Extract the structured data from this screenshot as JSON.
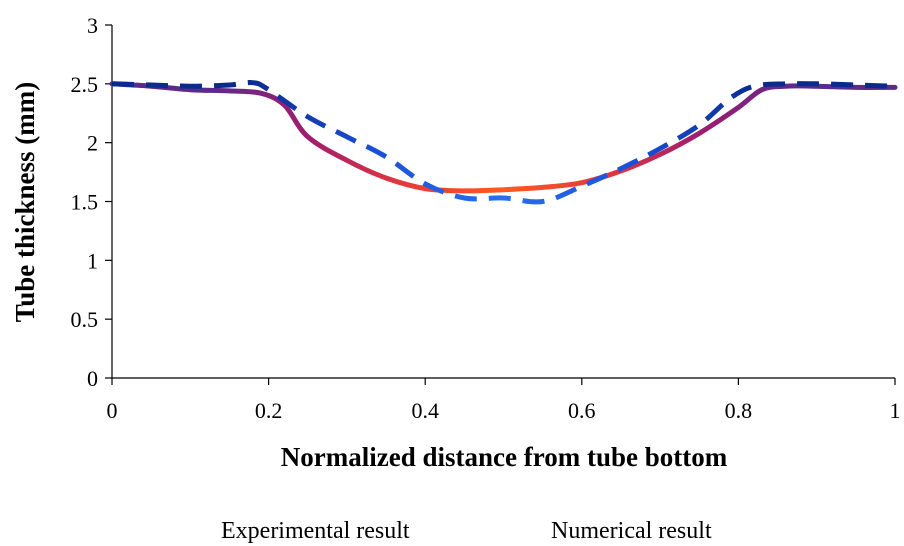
{
  "chart_data": {
    "type": "line",
    "title": "",
    "xlabel": "Normalized distance from tube bottom",
    "ylabel": "Tube thickness (mm)",
    "xlim": [
      0,
      1
    ],
    "ylim": [
      0,
      3
    ],
    "x_ticks": [
      "0",
      "0.2",
      "0.4",
      "0.6",
      "0.8",
      "1"
    ],
    "y_ticks": [
      "0",
      "0.5",
      "1",
      "1.5",
      "2",
      "2.5",
      "3"
    ],
    "grid": false,
    "legend": "bottom",
    "series": [
      {
        "name": "Experimental result",
        "style": "solid",
        "gradient_colors": [
          "#5b2a8f",
          "#a01c6e",
          "#e8383b",
          "#ff5a1f"
        ],
        "x": [
          0.0,
          0.05,
          0.1,
          0.15,
          0.19,
          0.22,
          0.25,
          0.3,
          0.35,
          0.4,
          0.45,
          0.5,
          0.55,
          0.6,
          0.65,
          0.7,
          0.75,
          0.8,
          0.83,
          0.86,
          0.9,
          0.95,
          1.0
        ],
        "y": [
          2.5,
          2.48,
          2.45,
          2.44,
          2.42,
          2.32,
          2.05,
          1.85,
          1.7,
          1.61,
          1.59,
          1.6,
          1.62,
          1.66,
          1.76,
          1.9,
          2.08,
          2.3,
          2.45,
          2.48,
          2.48,
          2.47,
          2.47
        ]
      },
      {
        "name": "Numerical result",
        "style": "dashed",
        "gradient_colors": [
          "#0a2a8c",
          "#1a4fd6",
          "#2a6ff0"
        ],
        "x": [
          0.0,
          0.05,
          0.1,
          0.15,
          0.18,
          0.2,
          0.25,
          0.3,
          0.35,
          0.4,
          0.45,
          0.5,
          0.55,
          0.6,
          0.65,
          0.7,
          0.75,
          0.79,
          0.82,
          0.86,
          0.9,
          0.95,
          1.0
        ],
        "y": [
          2.5,
          2.49,
          2.48,
          2.49,
          2.51,
          2.45,
          2.22,
          2.05,
          1.88,
          1.65,
          1.53,
          1.53,
          1.5,
          1.63,
          1.78,
          1.95,
          2.15,
          2.38,
          2.48,
          2.5,
          2.5,
          2.49,
          2.48
        ]
      }
    ]
  }
}
